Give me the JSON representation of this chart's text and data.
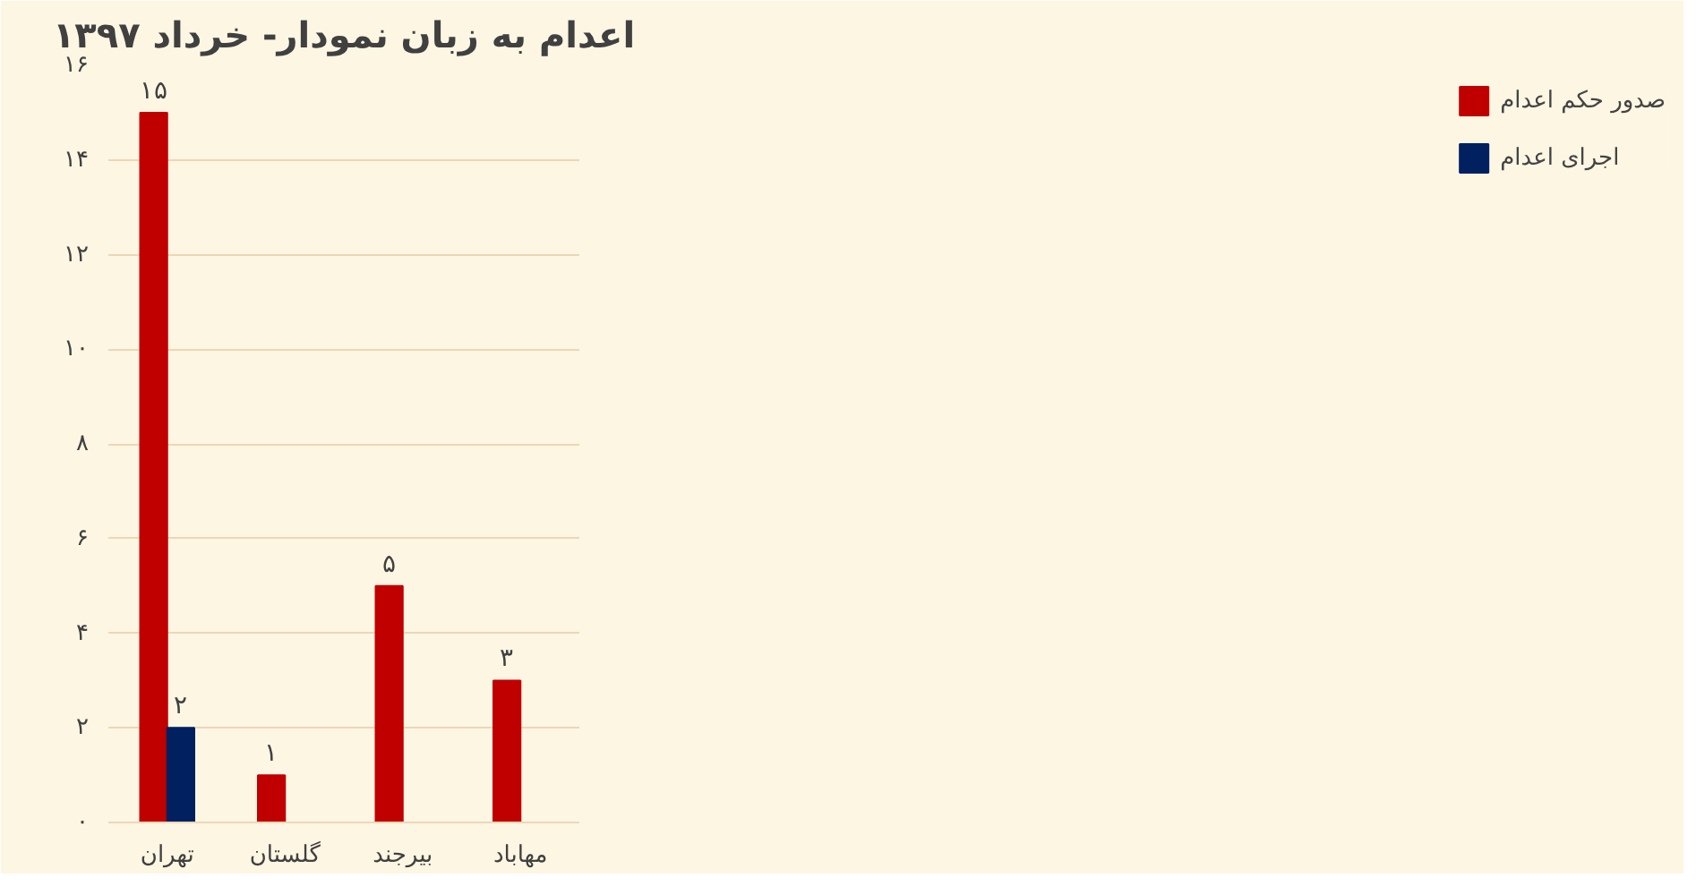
{
  "chart_data": {
    "type": "bar",
    "title": "اعدام به زبان نمودار- خرداد ۱۳۹۷",
    "categories": [
      "تهران",
      "گلستان",
      "بیرجند",
      "مهاباد"
    ],
    "series": [
      {
        "name": "صدور حکم اعدام",
        "color": "#c00000",
        "values": [
          15,
          1,
          5,
          3
        ],
        "value_labels": [
          "۱۵",
          "۱",
          "۵",
          "۳"
        ]
      },
      {
        "name": "اجرای اعدام",
        "color": "#002060",
        "values": [
          2,
          null,
          null,
          null
        ],
        "value_labels": [
          "۲",
          null,
          null,
          null
        ]
      }
    ],
    "ylim": [
      0,
      16
    ],
    "yticks": [
      {
        "value": 0,
        "label": "۰"
      },
      {
        "value": 2,
        "label": "۲"
      },
      {
        "value": 4,
        "label": "۴"
      },
      {
        "value": 6,
        "label": "۶"
      },
      {
        "value": 8,
        "label": "۸"
      },
      {
        "value": 10,
        "label": "۱۰"
      },
      {
        "value": 12,
        "label": "۱۲"
      },
      {
        "value": 14,
        "label": "۱۴"
      },
      {
        "value": 16,
        "label": "۱۶"
      }
    ],
    "grid": "y",
    "legend": "right"
  }
}
